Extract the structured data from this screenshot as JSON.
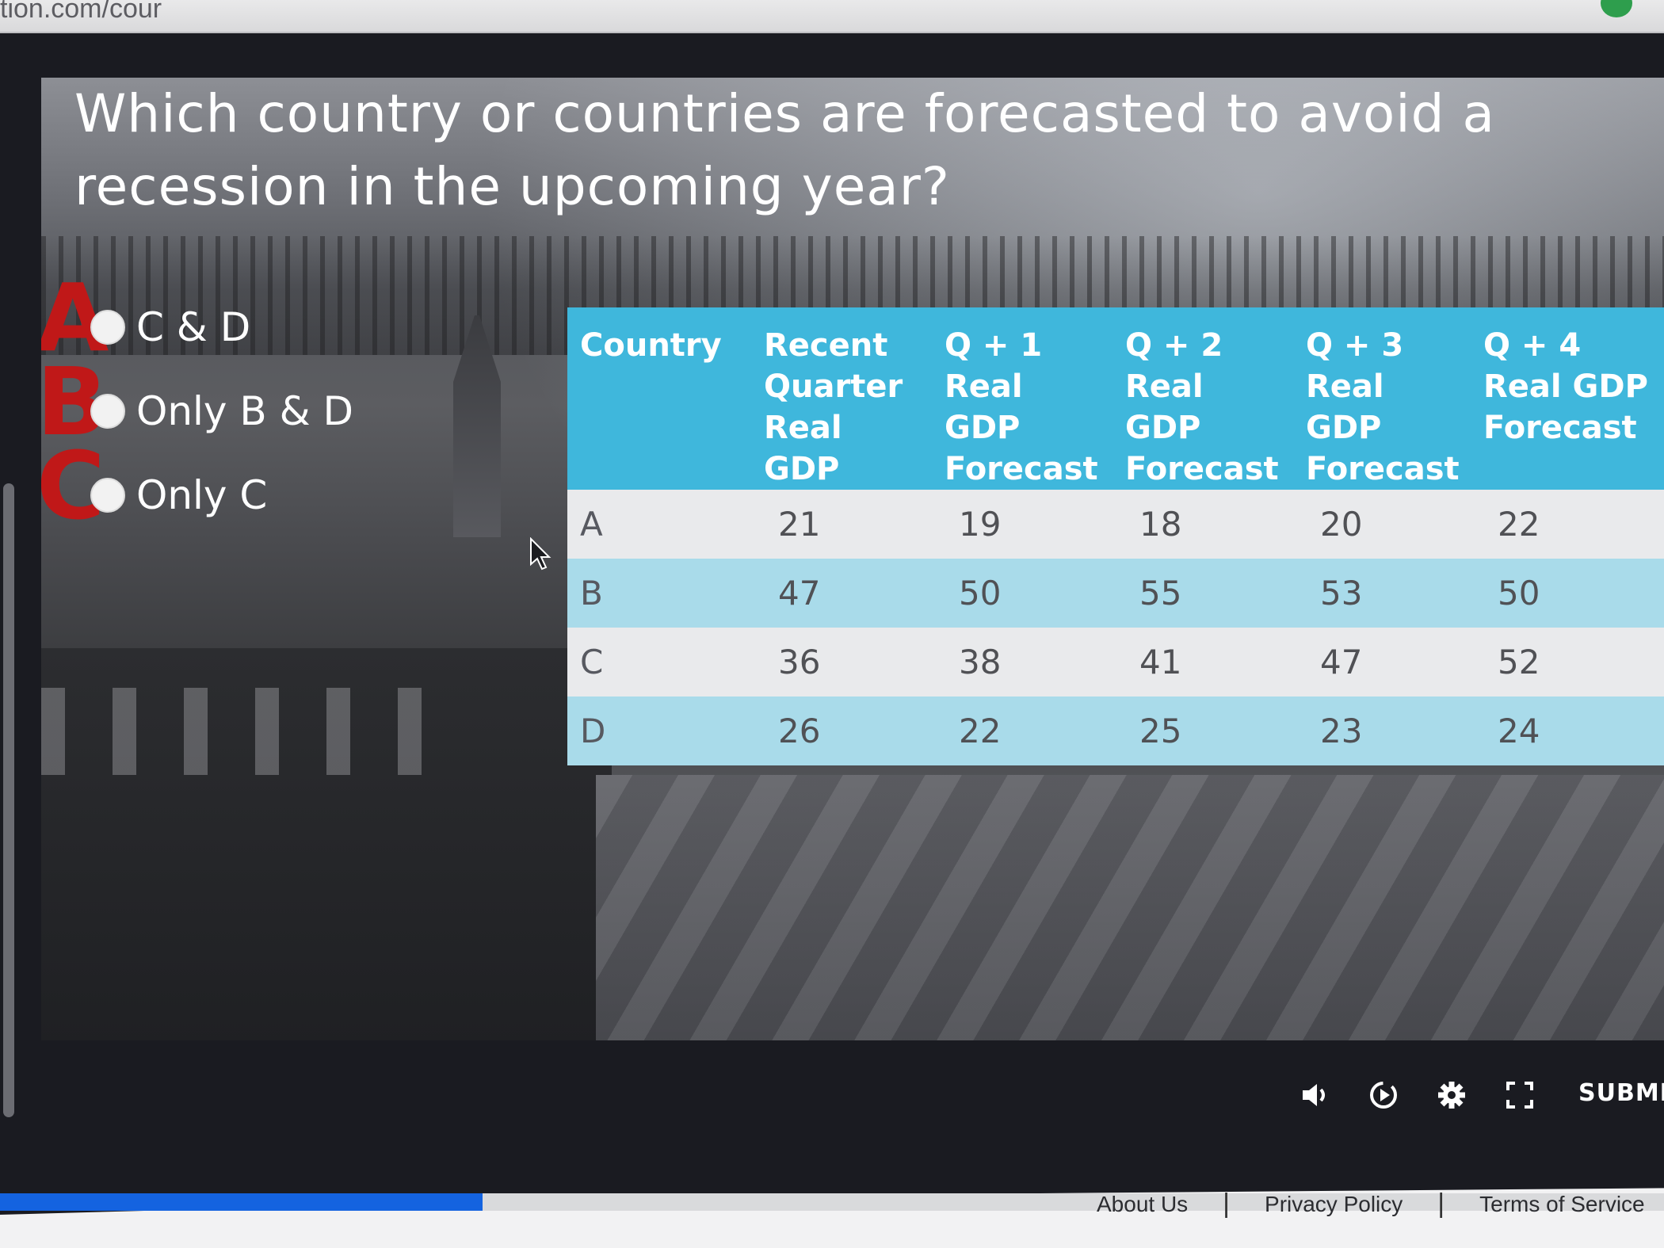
{
  "browser": {
    "url_fragment": "tion.com/cour"
  },
  "question": {
    "line1": "Which country or countries are forecasted to avoid a",
    "line2": "recession in the upcoming year?"
  },
  "choices": [
    {
      "mark": "A",
      "label": "C & D"
    },
    {
      "mark": "B",
      "label": "Only B & D"
    },
    {
      "mark": "C",
      "label": "Only C"
    }
  ],
  "table": {
    "headers": [
      [
        "Country"
      ],
      [
        "Recent",
        "Quarter",
        "Real GDP"
      ],
      [
        "Q + 1",
        "Real GDP",
        "Forecast"
      ],
      [
        "Q + 2",
        "Real GDP",
        "Forecast"
      ],
      [
        "Q + 3",
        "Real GDP",
        "Forecast"
      ],
      [
        "Q + 4",
        "Real GDP",
        "Forecast"
      ]
    ],
    "rows": [
      [
        "A",
        "21",
        "19",
        "18",
        "20",
        "22"
      ],
      [
        "B",
        "47",
        "50",
        "55",
        "53",
        "50"
      ],
      [
        "C",
        "36",
        "38",
        "41",
        "47",
        "52"
      ],
      [
        "D",
        "26",
        "22",
        "25",
        "23",
        "24"
      ]
    ]
  },
  "controls": {
    "icons": [
      "volume-icon",
      "playback-speed-icon",
      "settings-gear-icon",
      "fullscreen-icon"
    ],
    "submit_label": "SUBMIT"
  },
  "progress": {
    "fraction": 0.29
  },
  "footer": {
    "about": "About Us",
    "privacy": "Privacy Policy",
    "terms": "Terms of Service"
  },
  "colors": {
    "header_blue": "#3fb7dc",
    "row_blue": "#a9dbea",
    "annotation_red": "#c01818",
    "progress_blue": "#1463e0"
  }
}
